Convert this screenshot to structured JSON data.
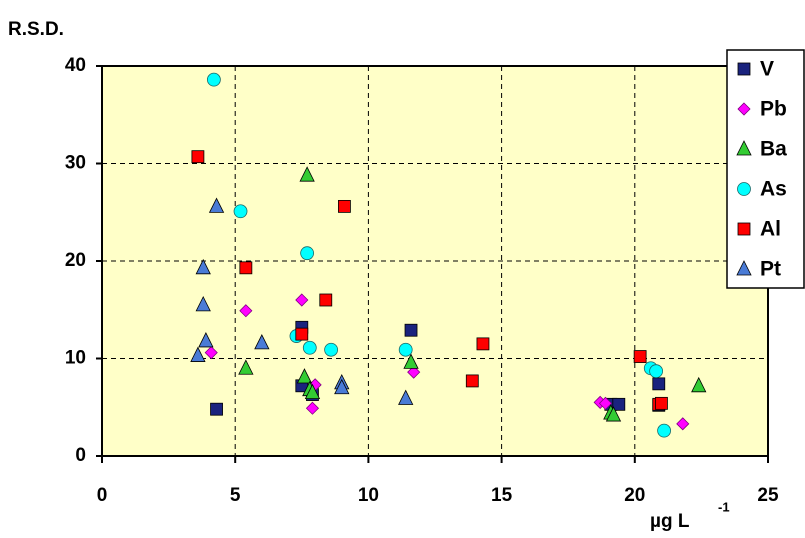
{
  "chart_data": {
    "type": "scatter",
    "ylabel": "R.S.D.",
    "xlabel": "µg L",
    "xlabel_sup": "-1",
    "xlim": [
      0,
      25
    ],
    "xticks": [
      0,
      5,
      10,
      15,
      20,
      25
    ],
    "ylim": [
      0,
      40
    ],
    "yticks": [
      0,
      10,
      20,
      30,
      40
    ],
    "grid": true,
    "legend": "right",
    "series": [
      {
        "name": "V",
        "color": "#1a237e",
        "marker": "square",
        "x": [
          4.3,
          7.5,
          7.5,
          7.9,
          11.6,
          19.1,
          19.4,
          20.9,
          20.9
        ],
        "values": [
          4.8,
          13.2,
          7.2,
          6.3,
          12.9,
          5.3,
          5.3,
          7.4,
          5.2
        ]
      },
      {
        "name": "Pb",
        "color": "#ff00ff",
        "marker": "diamond",
        "x": [
          4.1,
          5.4,
          7.5,
          7.9,
          8.0,
          11.7,
          18.7,
          18.9,
          21.8
        ],
        "values": [
          10.6,
          14.9,
          16.0,
          4.9,
          7.3,
          8.6,
          5.5,
          5.4,
          3.3
        ]
      },
      {
        "name": "Ba",
        "color": "#33cc33",
        "marker": "triangle",
        "x": [
          5.4,
          7.7,
          7.6,
          7.8,
          7.9,
          11.6,
          19.1,
          19.2,
          22.4
        ],
        "values": [
          9.0,
          28.8,
          8.1,
          6.8,
          6.5,
          9.6,
          4.4,
          4.2,
          7.2
        ]
      },
      {
        "name": "As",
        "color": "#00ffff",
        "marker": "circle",
        "x": [
          4.2,
          5.2,
          7.7,
          7.3,
          7.8,
          8.6,
          11.4,
          20.6,
          20.8,
          21.1
        ],
        "values": [
          38.6,
          25.1,
          20.8,
          12.3,
          11.1,
          10.9,
          10.9,
          9.0,
          8.7,
          2.6
        ]
      },
      {
        "name": "Al",
        "color": "#ff0000",
        "marker": "square",
        "x": [
          3.6,
          5.4,
          7.5,
          8.4,
          9.1,
          13.9,
          14.3,
          20.2,
          20.9,
          21.0
        ],
        "values": [
          30.7,
          19.3,
          12.5,
          16.0,
          25.6,
          7.7,
          11.5,
          10.2,
          5.3,
          5.4
        ]
      },
      {
        "name": "Pt",
        "color": "#4a7bd6",
        "marker": "triangle",
        "x": [
          4.3,
          3.8,
          3.8,
          3.9,
          3.6,
          6.0,
          9.0,
          9.0,
          11.4
        ],
        "values": [
          25.6,
          19.3,
          15.5,
          11.8,
          10.3,
          11.6,
          7.5,
          7.0,
          5.9
        ]
      }
    ]
  }
}
